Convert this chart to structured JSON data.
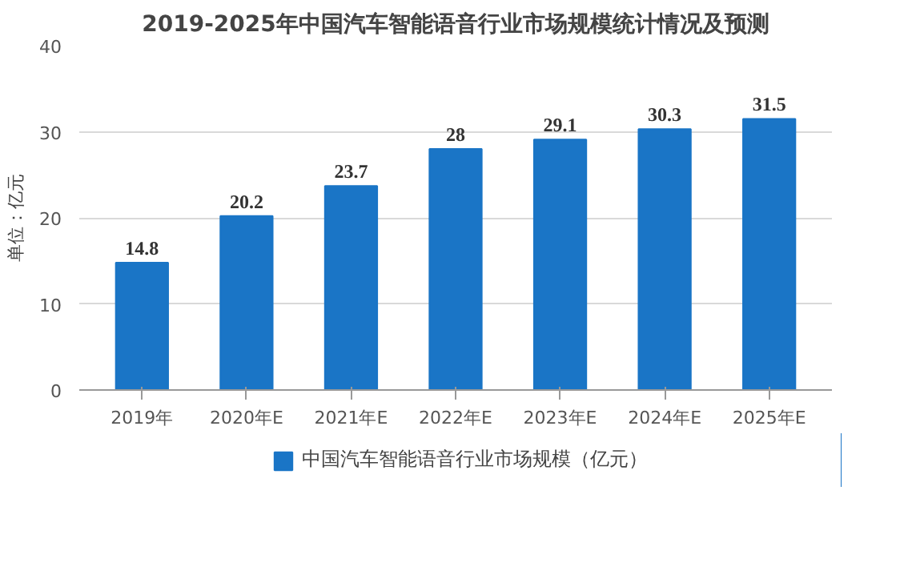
{
  "chart_data": {
    "type": "bar",
    "title": "2019-2025年中国汽车智能语音行业市场规模统计情况及预测",
    "ylabel": "单位：亿元",
    "categories": [
      "2019年",
      "2020年E",
      "2021年E",
      "2022年E",
      "2023年E",
      "2024年E",
      "2025年E"
    ],
    "series": [
      {
        "name": "中国汽车智能语音行业市场规模（亿元）",
        "color": "#1a75c6",
        "values": [
          14.8,
          20.2,
          23.7,
          28,
          29.1,
          30.3,
          31.5
        ]
      }
    ],
    "ylim": [
      0,
      40
    ],
    "yticks": [
      0,
      10,
      20,
      30,
      40
    ],
    "grid": "y",
    "legend": "bottom",
    "data_labels": true
  }
}
